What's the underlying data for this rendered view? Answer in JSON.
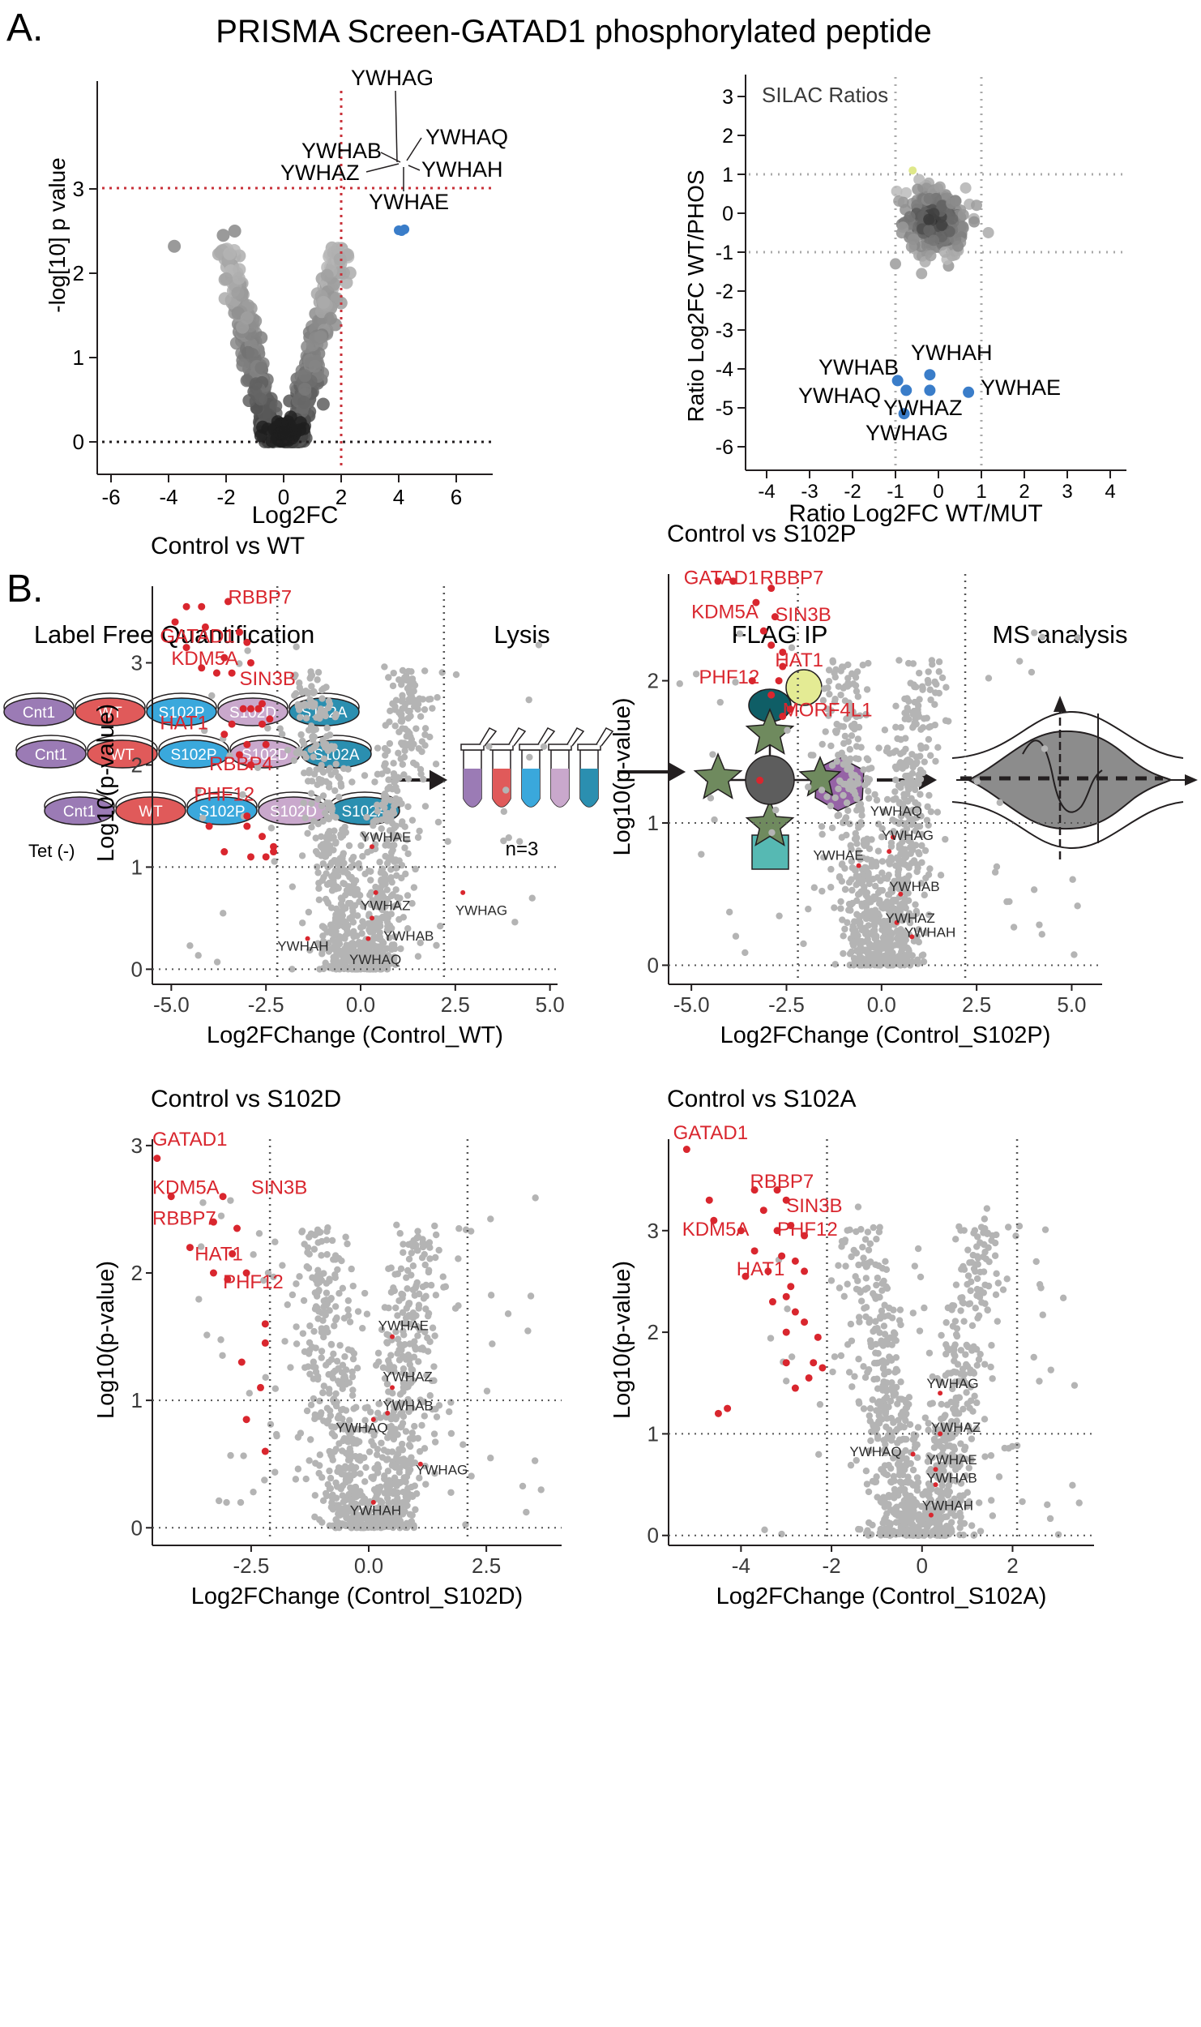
{
  "panel_a": {
    "letter": "A.",
    "title": "PRISMA Screen-GATAD1 phosphorylated peptide",
    "volcano": {
      "xlabel": "Log2FC",
      "ylabel": "-log[10] p value",
      "xticks": [
        "-6",
        "-4",
        "-2",
        "0",
        "2",
        "4",
        "6"
      ],
      "yticks": [
        "0",
        "1",
        "2",
        "3"
      ],
      "labels": [
        "YWHAG",
        "YWHAB",
        "YWHAQ",
        "YWHAZ",
        "YWHAH",
        "YWHAE"
      ]
    },
    "silac": {
      "title": "SILAC Ratios",
      "xlabel": "Ratio Log2FC WT/MUT",
      "ylabel": "Ratio Log2FC WT/PHOS",
      "xticks": [
        "-4",
        "-3",
        "-2",
        "-1",
        "0",
        "1",
        "2",
        "3",
        "4"
      ],
      "yticks": [
        "3",
        "2",
        "1",
        "0",
        "-1",
        "-2",
        "-3",
        "-4",
        "-5",
        "-6"
      ],
      "labels": [
        "YWHAH",
        "YWHAB",
        "YWHAE",
        "YWHAQ",
        "YWHAZ",
        "YWHAG"
      ]
    }
  },
  "panel_b": {
    "letter": "B.",
    "workflow": {
      "step1": "Label Free Quantification",
      "step2": "Lysis",
      "step3": "FLAG IP",
      "step4": "MS analysis",
      "dishes": [
        "Cnt1",
        "WT",
        "S102P",
        "S102D",
        "S102A"
      ],
      "tet": "Tet (-)",
      "n": "n=3"
    }
  },
  "chart_data": [
    {
      "type": "scatter",
      "title": "Control vs WT",
      "xlabel": "Log2FChange (Control_WT)",
      "ylabel": "Log10(p-value)",
      "xticks": [
        "-5.0",
        "-2.5",
        "0.0",
        "2.5",
        "5.0"
      ],
      "yticks": [
        "0",
        "1",
        "2",
        "3"
      ],
      "red_labels": [
        "RBBP7",
        "GATAD1",
        "KDM5A",
        "SIN3B",
        "HAT1",
        "RBBP4",
        "PHF12"
      ],
      "grey_labels": [
        "YWHAE",
        "YWHAZ",
        "YWHAG",
        "YWHAB",
        "YWHAH",
        "YWHAQ"
      ]
    },
    {
      "type": "scatter",
      "title": "Control vs S102P",
      "xlabel": "Log2FChange (Control_S102P)",
      "ylabel": "Log10(p-value)",
      "xticks": [
        "-5.0",
        "-2.5",
        "0.0",
        "2.5",
        "5.0"
      ],
      "yticks": [
        "0",
        "1",
        "2"
      ],
      "red_labels": [
        "GATAD1",
        "RBBP7",
        "KDM5A",
        "SIN3B",
        "HAT1",
        "PHF12",
        "MORF4L1"
      ],
      "grey_labels": [
        "YWHAQ",
        "YWHAG",
        "YWHAE",
        "YWHAB",
        "YWHAZ",
        "YWHAH"
      ]
    },
    {
      "type": "scatter",
      "title": "Control vs S102D",
      "xlabel": "Log2FChange (Control_S102D)",
      "ylabel": "Log10(p-value)",
      "xticks": [
        "-2.5",
        "0.0",
        "2.5"
      ],
      "yticks": [
        "0",
        "1",
        "2",
        "3"
      ],
      "red_labels": [
        "GATAD1",
        "KDM5A",
        "SIN3B",
        "RBBP7",
        "HAT1",
        "PHF12"
      ],
      "grey_labels": [
        "YWHAE",
        "YWHAZ",
        "YWHAB",
        "YWHAQ",
        "YWHAG",
        "YWHAH"
      ]
    },
    {
      "type": "scatter",
      "title": "Control vs S102A",
      "xlabel": "Log2FChange (Control_S102A)",
      "ylabel": "Log10(p-value)",
      "xticks": [
        "-4",
        "-2",
        "0",
        "2"
      ],
      "yticks": [
        "0",
        "1",
        "2",
        "3"
      ],
      "red_labels": [
        "GATAD1",
        "RBBP7",
        "SIN3B",
        "KDM5A",
        "PHF12",
        "HAT1"
      ],
      "grey_labels": [
        "YWHAG",
        "YWHAZ",
        "YWHAQ",
        "YWHAE",
        "YWHAB",
        "YWHAH"
      ]
    }
  ],
  "colors": {
    "red": "#d9262e",
    "grey": "#b3b3b3",
    "blue": "#3a7dc9",
    "purple": "#9b7bb5",
    "wt_red": "#e05a5a",
    "cyan": "#3aa8dc",
    "lilac": "#c9a8cc",
    "teal": "#2b8fb0"
  }
}
